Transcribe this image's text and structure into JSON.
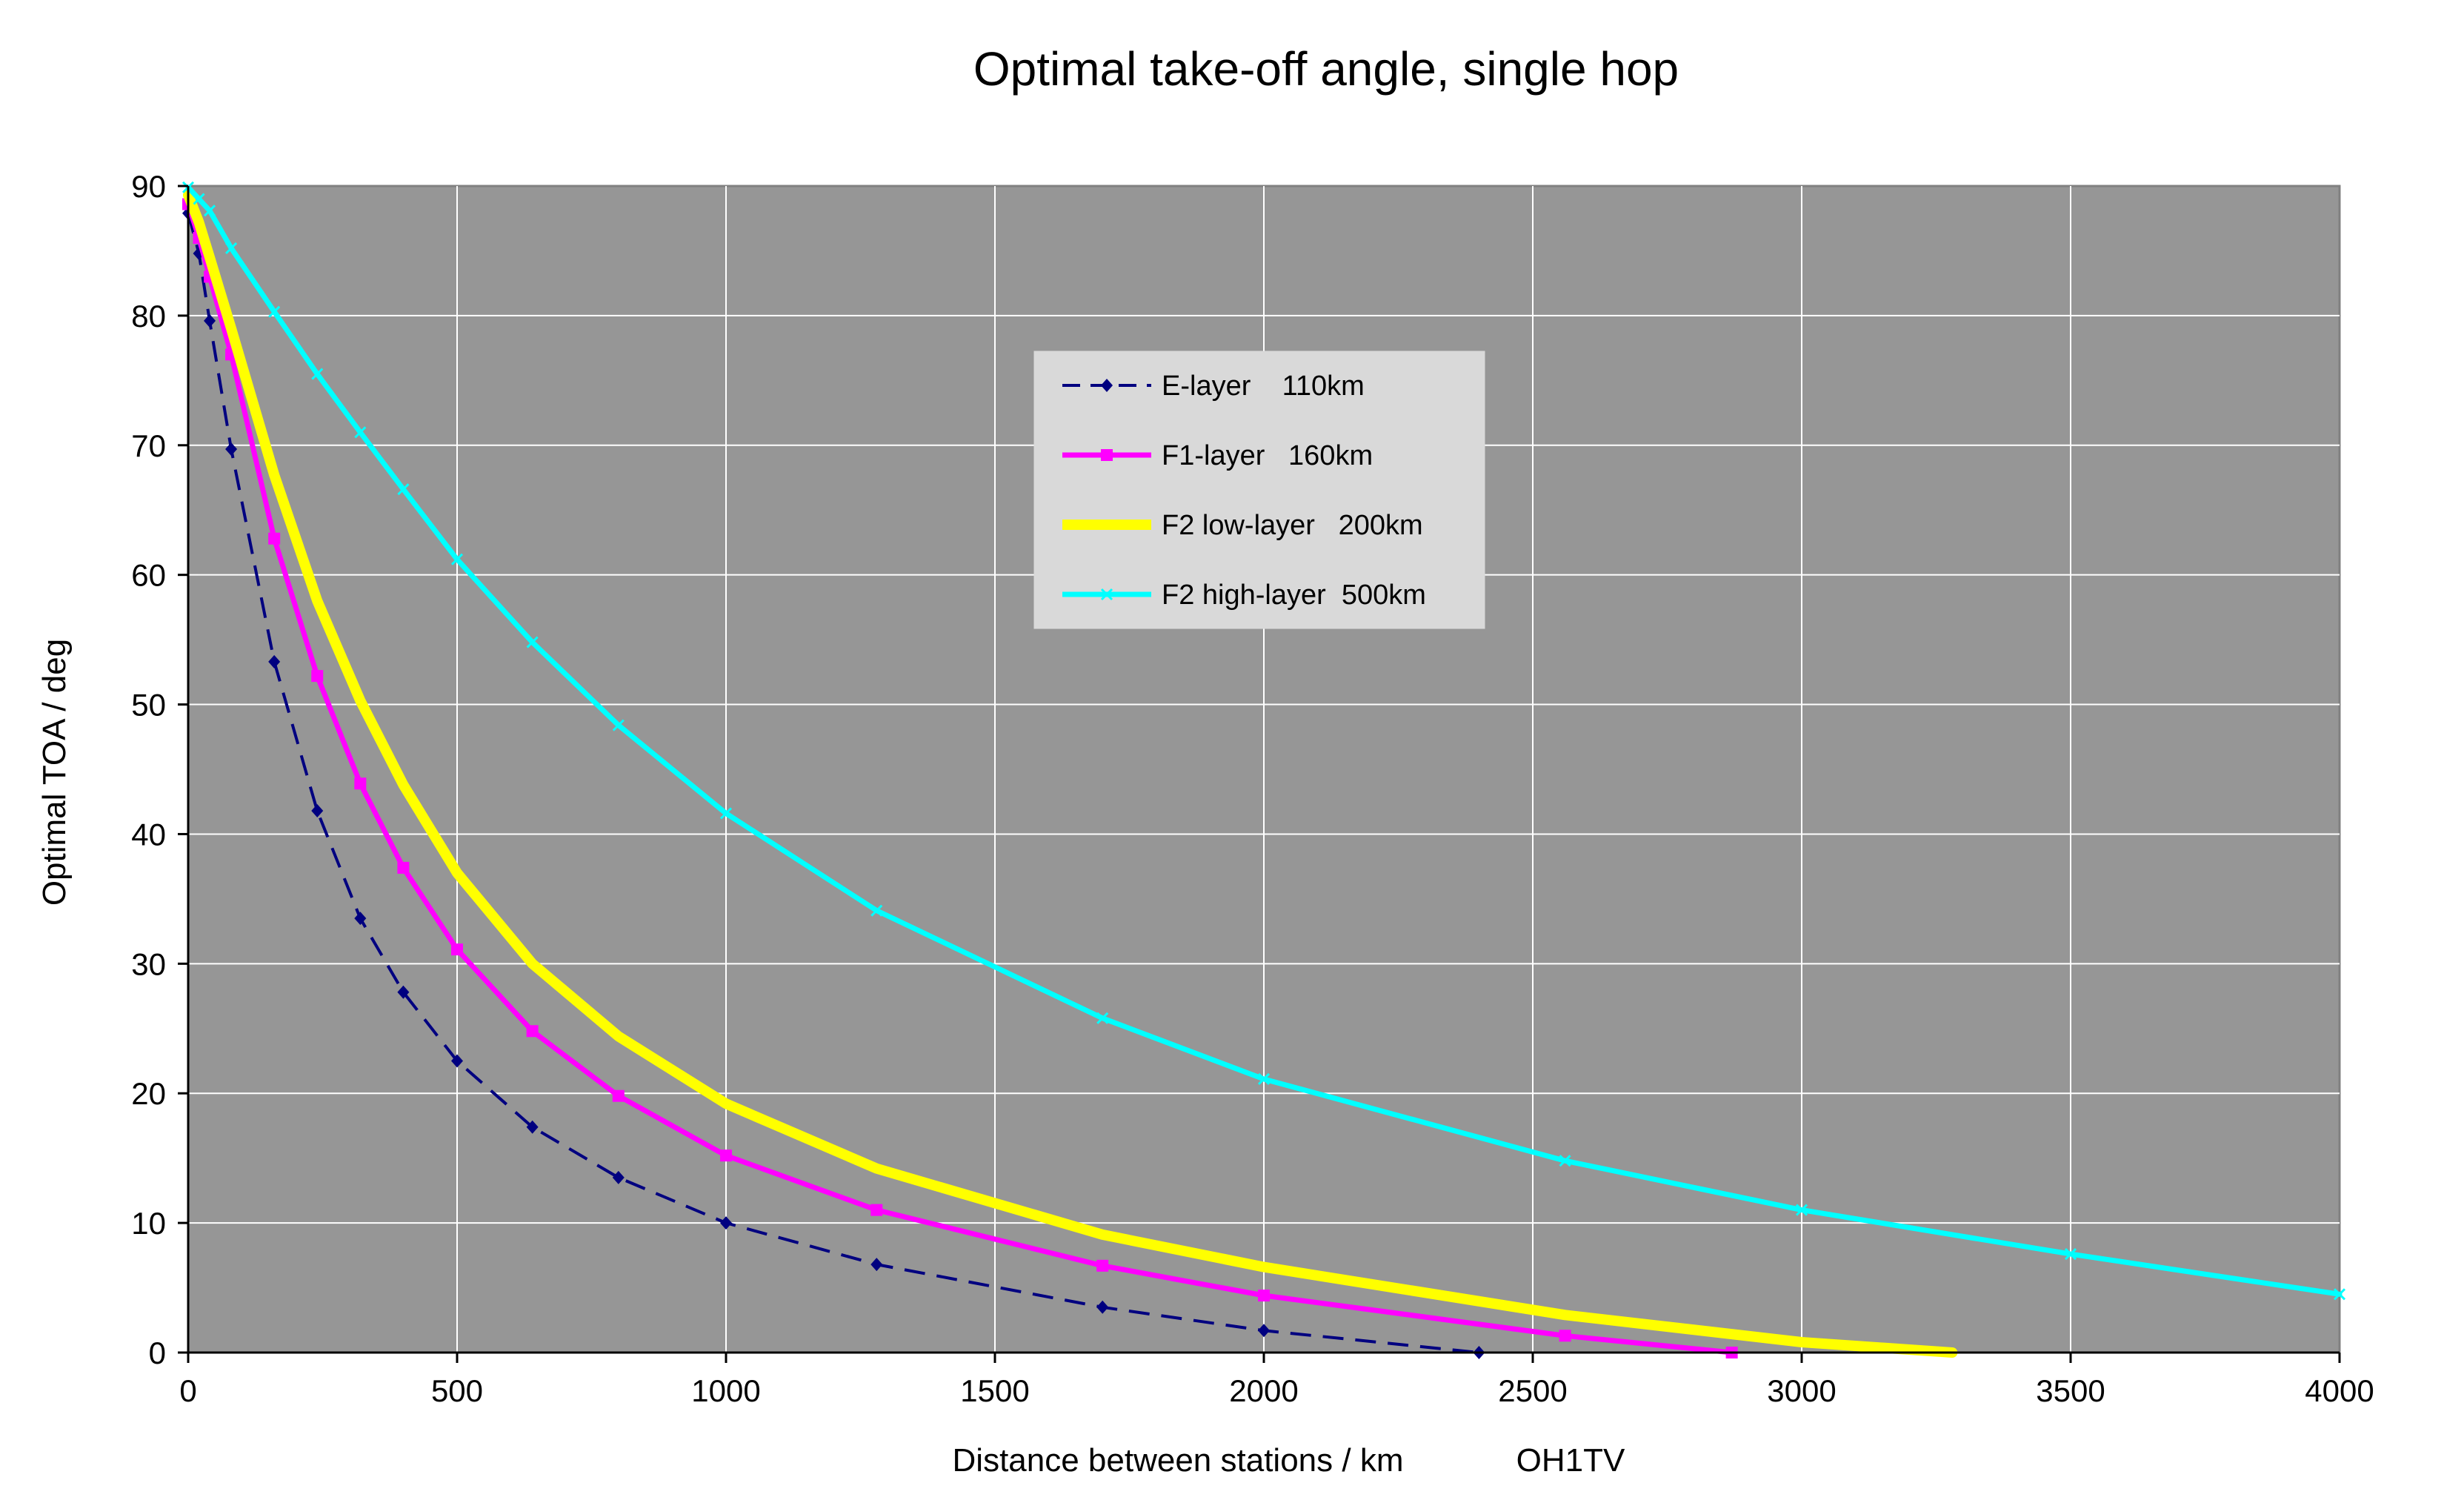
{
  "chart_data": {
    "type": "line",
    "title": "Optimal take-off angle, single hop",
    "xlabel": "Distance between stations / km",
    "credit": "OH1TV",
    "ylabel": "Optimal TOA / deg",
    "xlim": [
      0,
      4000
    ],
    "ylim": [
      0,
      90
    ],
    "xticks": [
      "0",
      "500",
      "1000",
      "1500",
      "2000",
      "2500",
      "3000",
      "3500",
      "4000"
    ],
    "yticks": [
      "0",
      "10",
      "20",
      "30",
      "40",
      "50",
      "60",
      "70",
      "80",
      "90"
    ],
    "grid": true,
    "legend_position": "upper-center",
    "plot_background": "#969696",
    "series": [
      {
        "name": "E-layer    110km",
        "color": "#000080",
        "style": "dashed",
        "marker": "diamond",
        "x": [
          0,
          20,
          40,
          80,
          160,
          240,
          320,
          400,
          500,
          640,
          800,
          1000,
          1280,
          1700,
          2000,
          2400
        ],
        "y": [
          87.9,
          84.8,
          79.6,
          69.7,
          53.3,
          41.8,
          33.5,
          27.8,
          22.5,
          17.4,
          13.5,
          10.0,
          6.8,
          3.5,
          1.7,
          0.0
        ]
      },
      {
        "name": "F1-layer   160km",
        "color": "#ff00ff",
        "style": "solid",
        "marker": "square",
        "x": [
          0,
          20,
          40,
          80,
          160,
          240,
          320,
          400,
          500,
          640,
          800,
          1000,
          1280,
          1700,
          2000,
          2560,
          2870
        ],
        "y": [
          88.6,
          86.0,
          83.0,
          77.0,
          62.8,
          52.2,
          43.9,
          37.4,
          31.1,
          24.8,
          19.8,
          15.2,
          11.0,
          6.7,
          4.4,
          1.3,
          0.0
        ]
      },
      {
        "name": "F2 low-layer   200km",
        "color": "#ffff00",
        "style": "solid",
        "marker": "none",
        "x": [
          0,
          20,
          40,
          80,
          160,
          240,
          320,
          400,
          500,
          640,
          800,
          1000,
          1280,
          1700,
          2000,
          2560,
          3000,
          3280
        ],
        "y": [
          89.3,
          87.2,
          84.5,
          79.0,
          67.7,
          58.0,
          50.3,
          43.8,
          37.0,
          30.0,
          24.4,
          19.2,
          14.2,
          9.1,
          6.6,
          2.9,
          0.8,
          0.0
        ]
      },
      {
        "name": "F2 high-layer  500km",
        "color": "#00ffff",
        "style": "solid",
        "marker": "cross",
        "x": [
          0,
          20,
          40,
          80,
          160,
          240,
          320,
          400,
          500,
          640,
          800,
          1000,
          1280,
          1700,
          2000,
          2560,
          3000,
          3500,
          4000
        ],
        "y": [
          89.9,
          89.0,
          88.1,
          85.2,
          80.3,
          75.5,
          71.0,
          66.6,
          61.2,
          54.8,
          48.4,
          41.6,
          34.1,
          25.8,
          21.1,
          14.8,
          11.0,
          7.6,
          4.5
        ]
      }
    ]
  }
}
